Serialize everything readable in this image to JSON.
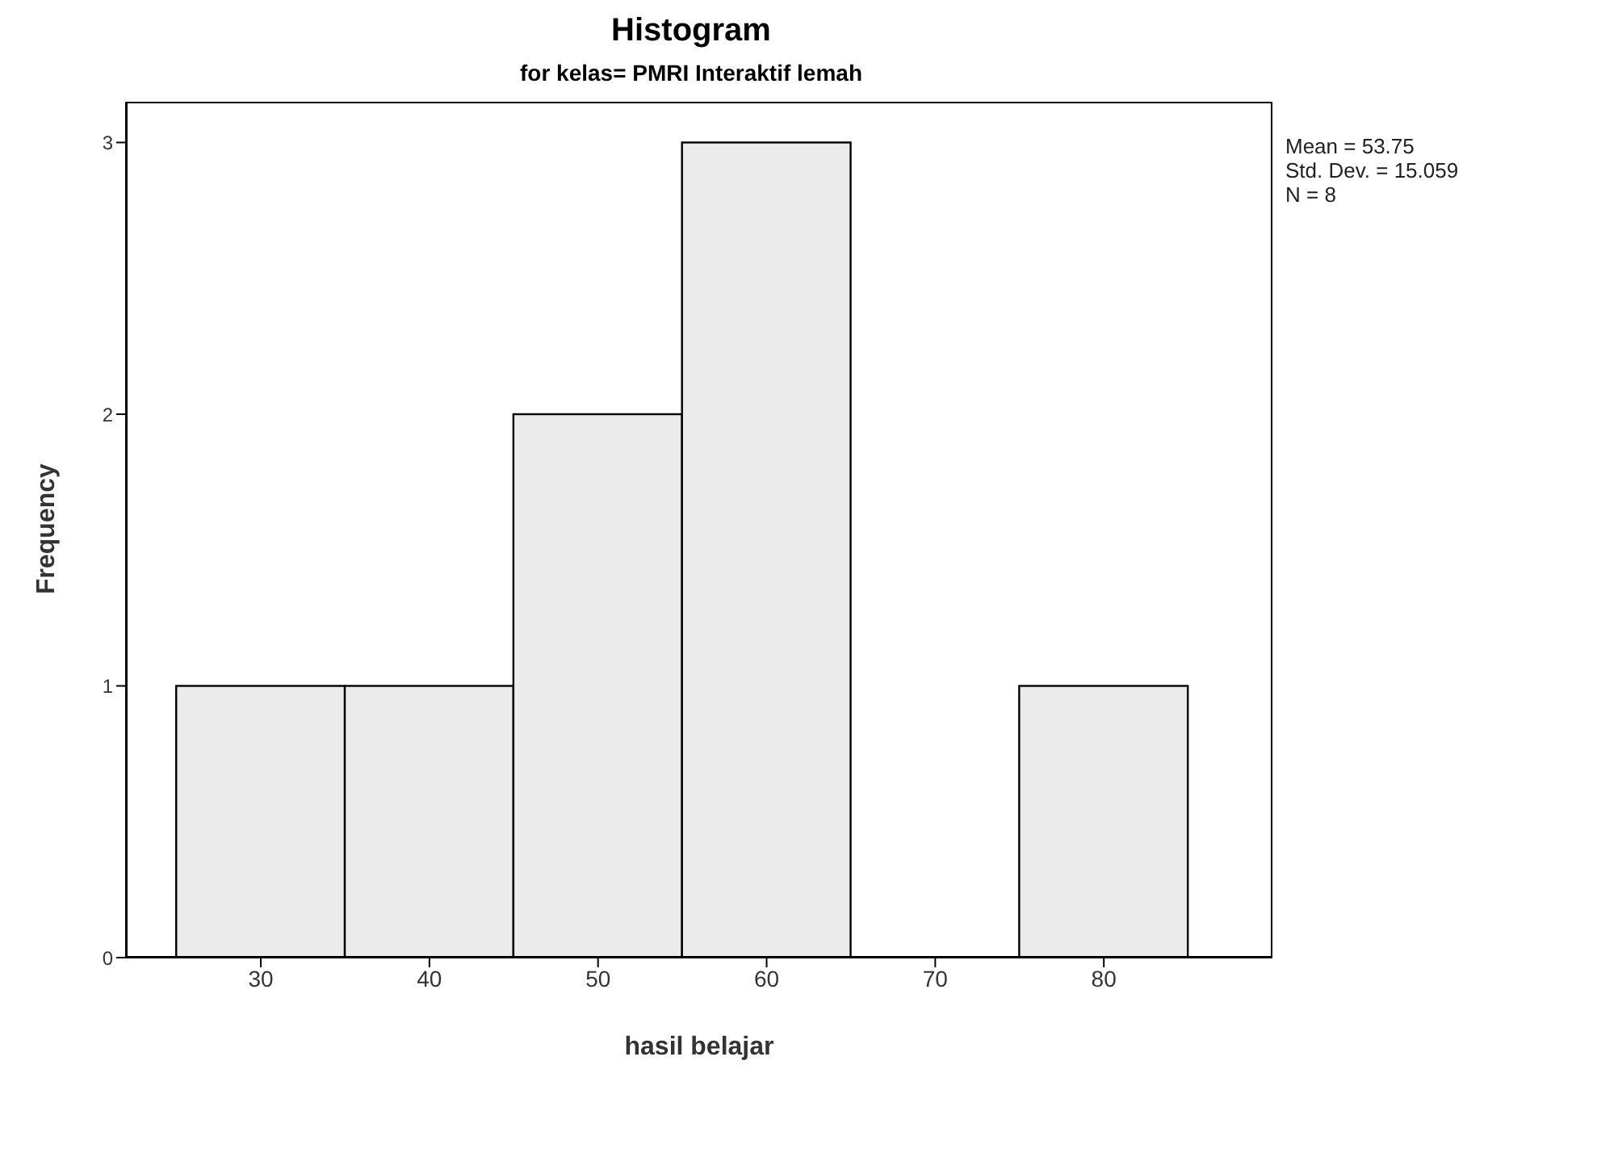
{
  "chart_data": {
    "type": "histogram",
    "title": "Histogram",
    "subtitle": "for kelas= PMRI Interaktif lemah",
    "xlabel": "hasil belajar",
    "ylabel": "Frequency",
    "bins": [
      25,
      35,
      45,
      55,
      65,
      75,
      85
    ],
    "values": [
      1,
      1,
      2,
      3,
      0,
      1
    ],
    "color": "#ebebeb",
    "xlim": [
      22,
      90
    ],
    "xticks": [
      30,
      40,
      50,
      60,
      70,
      80
    ],
    "ylim": [
      0,
      3.15
    ],
    "yticks": [
      0,
      1,
      2,
      3
    ],
    "annotations": [
      "Mean = 53.75",
      "Std. Dev. = 15.059",
      "N = 8"
    ],
    "grid": false,
    "legend": false
  }
}
